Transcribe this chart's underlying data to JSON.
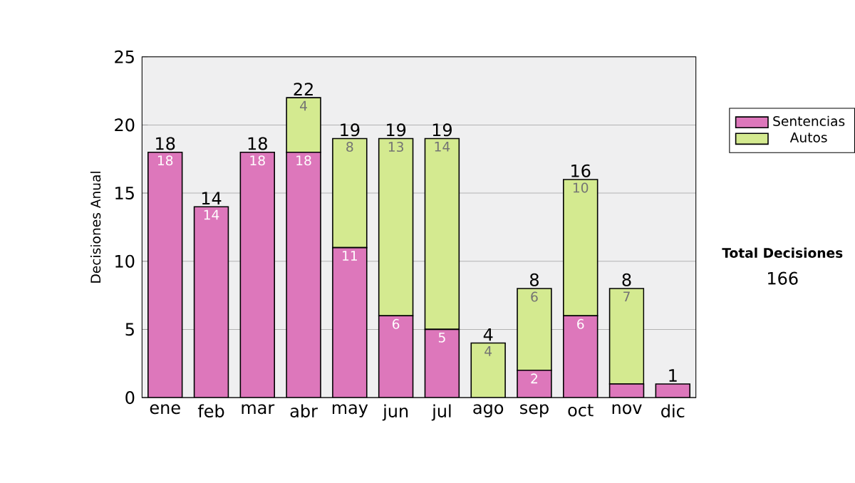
{
  "chart_data": {
    "type": "bar",
    "stacked": true,
    "ylabel": "Decisiones Anual",
    "categories": [
      "ene",
      "feb",
      "mar",
      "abr",
      "may",
      "jun",
      "jul",
      "ago",
      "sep",
      "oct",
      "nov",
      "dic"
    ],
    "series": [
      {
        "name": "Sentencias",
        "color": "#dd77bb",
        "values": [
          18,
          14,
          18,
          18,
          11,
          6,
          5,
          0,
          2,
          6,
          1,
          1
        ],
        "value_labels": [
          "18",
          "14",
          "18",
          "18",
          "11",
          "6",
          "5",
          null,
          "2",
          "6",
          null,
          null
        ]
      },
      {
        "name": "Autos",
        "color": "#d4ea90",
        "values": [
          0,
          0,
          0,
          4,
          8,
          13,
          14,
          4,
          6,
          10,
          7,
          0
        ],
        "value_labels": [
          null,
          null,
          null,
          "4",
          "8",
          "13",
          "14",
          "4",
          "6",
          "10",
          "7",
          null
        ]
      }
    ],
    "totals": [
      "18",
      "14",
      "18",
      "22",
      "19",
      "19",
      "19",
      "4",
      "8",
      "16",
      "8",
      "1"
    ],
    "ylim": [
      0,
      25
    ],
    "yticks": [
      0,
      5,
      10,
      15,
      20,
      25
    ],
    "grid": "y",
    "legend": "right",
    "annotations": [
      "Total Decisiones",
      "166"
    ]
  }
}
